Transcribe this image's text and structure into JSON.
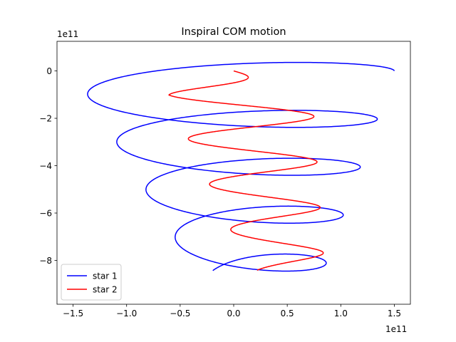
{
  "chart_data": {
    "type": "line",
    "title": "Inspiral COM motion",
    "xlabel": "",
    "ylabel": "",
    "x_offset_text": "1e11",
    "y_offset_text": "1e11",
    "xlim": [
      -1.65,
      1.65
    ],
    "ylim": [
      -9.85,
      1.25
    ],
    "xticks": [
      -1.5,
      -1.0,
      -0.5,
      0.0,
      0.5,
      1.0,
      1.5
    ],
    "xtick_labels": [
      "−1.5",
      "−1.0",
      "−0.5",
      "0.0",
      "0.5",
      "1.0",
      "1.5"
    ],
    "yticks": [
      0,
      -2,
      -4,
      -6,
      -8
    ],
    "ytick_labels": [
      "0",
      "−2",
      "−4",
      "−6",
      "−8"
    ],
    "grid": false,
    "legend_position": "lower-left",
    "series": [
      {
        "name": "star 1",
        "color": "#0000ff",
        "orbit": {
          "x_center_start": 0.0,
          "x_center_end": 0.25,
          "amp_start": 1.5,
          "amp_end": 0.55,
          "y_start": 0.0,
          "y_end": -8.9,
          "wobble_start": 0.8,
          "wobble_end": 0.8,
          "turns": 4.4
        }
      },
      {
        "name": "star 2",
        "color": "#ff0000",
        "orbit": {
          "x_center_start": 0.0,
          "x_center_end": 0.5,
          "amp_start": 0.0,
          "amp_end": 0.2,
          "amp_peak": 0.72,
          "y_start": 0.0,
          "y_end": -8.45,
          "wobble_start": 0.0,
          "wobble_end": 0.15,
          "turns": 4.4
        }
      }
    ]
  }
}
